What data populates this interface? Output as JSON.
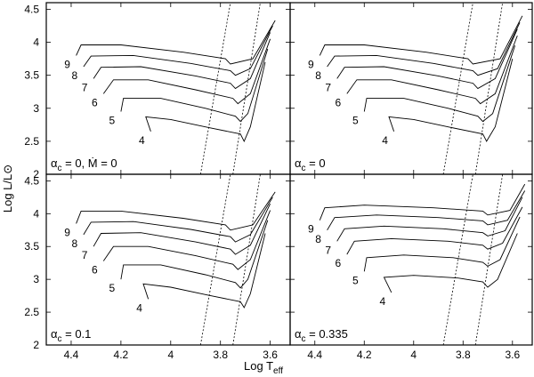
{
  "figure": {
    "ylabel": "Log L/L⊙",
    "xlabel": "Log T",
    "xlabel_sub": "eff",
    "xticks": [
      4.4,
      4.2,
      4,
      3.8,
      3.6
    ],
    "yticks": [
      2,
      2.5,
      3,
      3.5,
      4,
      4.5
    ]
  },
  "chart_data": [
    {
      "type": "line",
      "panel": "top-left",
      "label_main": "α",
      "label_sub": "c",
      "label_rest": " = 0, Ṁ = 0",
      "xlabel": "Log Teff",
      "ylabel": "Log L/L⊙",
      "xlim": [
        4.5,
        3.52
      ],
      "ylim": [
        2,
        4.6
      ],
      "x_reversed": true,
      "grid": false,
      "series": [
        {
          "name": "4",
          "x": [
            4.08,
            4.1,
            4.0,
            3.85,
            3.72,
            3.705,
            3.68,
            3.62
          ],
          "y": [
            2.65,
            2.87,
            2.83,
            2.71,
            2.61,
            2.5,
            2.72,
            3.7
          ]
        },
        {
          "name": "5",
          "x": [
            4.2,
            4.19,
            4.04,
            3.86,
            3.74,
            3.72,
            3.69,
            3.61
          ],
          "y": [
            2.95,
            3.15,
            3.15,
            3.0,
            2.88,
            2.8,
            2.92,
            3.9
          ]
        },
        {
          "name": "6",
          "x": [
            4.27,
            4.23,
            4.09,
            3.9,
            3.75,
            3.73,
            3.68,
            3.6
          ],
          "y": [
            3.22,
            3.43,
            3.43,
            3.28,
            3.15,
            3.07,
            3.22,
            4.05
          ]
        },
        {
          "name": "7",
          "x": [
            4.31,
            4.28,
            4.12,
            3.9,
            3.76,
            3.74,
            3.68,
            3.6
          ],
          "y": [
            3.45,
            3.62,
            3.63,
            3.49,
            3.38,
            3.3,
            3.45,
            4.15
          ]
        },
        {
          "name": "8",
          "x": [
            4.35,
            4.32,
            4.15,
            3.92,
            3.76,
            3.74,
            3.68,
            3.59
          ],
          "y": [
            3.63,
            3.79,
            3.8,
            3.68,
            3.57,
            3.5,
            3.6,
            4.25
          ]
        },
        {
          "name": "9",
          "x": [
            4.38,
            4.36,
            4.2,
            3.95,
            3.78,
            3.76,
            3.67,
            3.58
          ],
          "y": [
            3.8,
            3.96,
            3.96,
            3.85,
            3.75,
            3.67,
            3.75,
            4.33
          ]
        }
      ],
      "isolines": [
        {
          "x": [
            3.88,
            3.76
          ],
          "y": [
            2,
            4.6
          ]
        },
        {
          "x": [
            3.75,
            3.64
          ],
          "y": [
            2,
            4.6
          ]
        }
      ]
    },
    {
      "type": "line",
      "panel": "top-right",
      "label_main": "α",
      "label_sub": "c",
      "label_rest": " = 0",
      "xlabel": "Log Teff",
      "ylabel": "Log L/L⊙",
      "xlim": [
        4.5,
        3.52
      ],
      "ylim": [
        2,
        4.6
      ],
      "x_reversed": true,
      "grid": false,
      "series": [
        {
          "name": "4",
          "x": [
            4.08,
            4.1,
            4.0,
            3.85,
            3.72,
            3.705,
            3.67,
            3.6
          ],
          "y": [
            2.65,
            2.87,
            2.83,
            2.71,
            2.61,
            2.5,
            2.72,
            3.75
          ]
        },
        {
          "name": "5",
          "x": [
            4.2,
            4.19,
            4.04,
            3.86,
            3.74,
            3.72,
            3.68,
            3.59
          ],
          "y": [
            2.95,
            3.15,
            3.15,
            3.0,
            2.88,
            2.8,
            2.92,
            3.95
          ]
        },
        {
          "name": "6",
          "x": [
            4.27,
            4.23,
            4.09,
            3.9,
            3.75,
            3.73,
            3.67,
            3.58
          ],
          "y": [
            3.22,
            3.43,
            3.43,
            3.28,
            3.15,
            3.07,
            3.22,
            4.1
          ]
        },
        {
          "name": "7",
          "x": [
            4.31,
            4.28,
            4.12,
            3.9,
            3.76,
            3.74,
            3.67,
            3.58
          ],
          "y": [
            3.45,
            3.62,
            3.63,
            3.49,
            3.38,
            3.3,
            3.45,
            4.2
          ]
        },
        {
          "name": "8",
          "x": [
            4.35,
            4.32,
            4.15,
            3.92,
            3.76,
            3.74,
            3.66,
            3.57
          ],
          "y": [
            3.63,
            3.79,
            3.8,
            3.68,
            3.57,
            3.5,
            3.6,
            4.3
          ]
        },
        {
          "name": "9",
          "x": [
            4.38,
            4.36,
            4.2,
            3.95,
            3.78,
            3.76,
            3.65,
            3.56
          ],
          "y": [
            3.8,
            3.96,
            3.96,
            3.85,
            3.75,
            3.67,
            3.75,
            4.4
          ]
        }
      ],
      "isolines": [
        {
          "x": [
            3.88,
            3.76
          ],
          "y": [
            2,
            4.6
          ]
        },
        {
          "x": [
            3.75,
            3.64
          ],
          "y": [
            2,
            4.6
          ]
        }
      ]
    },
    {
      "type": "line",
      "panel": "bottom-left",
      "label_main": "α",
      "label_sub": "c",
      "label_rest": " = 0.1",
      "xlabel": "Log Teff",
      "ylabel": "Log L/L⊙",
      "xlim": [
        4.5,
        3.52
      ],
      "ylim": [
        2,
        4.6
      ],
      "x_reversed": true,
      "grid": false,
      "series": [
        {
          "name": "4",
          "x": [
            4.09,
            4.11,
            4.0,
            3.85,
            3.72,
            3.705,
            3.68,
            3.62
          ],
          "y": [
            2.7,
            2.93,
            2.88,
            2.76,
            2.66,
            2.57,
            2.78,
            3.7
          ]
        },
        {
          "name": "5",
          "x": [
            4.2,
            4.19,
            4.04,
            3.86,
            3.74,
            3.72,
            3.69,
            3.61
          ],
          "y": [
            3.0,
            3.22,
            3.22,
            3.07,
            2.95,
            2.87,
            3.0,
            3.9
          ]
        },
        {
          "name": "6",
          "x": [
            4.27,
            4.23,
            4.09,
            3.9,
            3.75,
            3.73,
            3.68,
            3.6
          ],
          "y": [
            3.28,
            3.5,
            3.5,
            3.36,
            3.23,
            3.15,
            3.3,
            4.05
          ]
        },
        {
          "name": "7",
          "x": [
            4.31,
            4.28,
            4.12,
            3.9,
            3.76,
            3.74,
            3.68,
            3.6
          ],
          "y": [
            3.5,
            3.7,
            3.71,
            3.57,
            3.46,
            3.38,
            3.52,
            4.15
          ]
        },
        {
          "name": "8",
          "x": [
            4.35,
            4.32,
            4.15,
            3.92,
            3.76,
            3.74,
            3.68,
            3.59
          ],
          "y": [
            3.68,
            3.87,
            3.88,
            3.76,
            3.65,
            3.57,
            3.68,
            4.25
          ]
        },
        {
          "name": "9",
          "x": [
            4.38,
            4.36,
            4.2,
            3.95,
            3.78,
            3.76,
            3.67,
            3.58
          ],
          "y": [
            3.85,
            4.04,
            4.04,
            3.93,
            3.83,
            3.75,
            3.83,
            4.33
          ]
        }
      ],
      "isolines": [
        {
          "x": [
            3.88,
            3.76
          ],
          "y": [
            2,
            4.6
          ]
        },
        {
          "x": [
            3.75,
            3.64
          ],
          "y": [
            2,
            4.6
          ]
        }
      ]
    },
    {
      "type": "line",
      "panel": "bottom-right",
      "label_main": "α",
      "label_sub": "c",
      "label_rest": " = 0.335",
      "xlabel": "Log Teff",
      "ylabel": "Log L/L⊙",
      "xlim": [
        4.5,
        3.52
      ],
      "ylim": [
        2,
        4.6
      ],
      "x_reversed": true,
      "grid": false,
      "series": [
        {
          "name": "4",
          "x": [
            4.09,
            4.12,
            4.0,
            3.82,
            3.72,
            3.7,
            3.66,
            3.58
          ],
          "y": [
            2.8,
            3.03,
            3.06,
            3.02,
            2.96,
            2.88,
            3.0,
            3.7
          ]
        },
        {
          "name": "5",
          "x": [
            4.2,
            4.19,
            4.04,
            3.84,
            3.72,
            3.7,
            3.65,
            3.57
          ],
          "y": [
            3.12,
            3.33,
            3.37,
            3.33,
            3.26,
            3.2,
            3.3,
            3.95
          ]
        },
        {
          "name": "6",
          "x": [
            4.27,
            4.24,
            4.09,
            3.86,
            3.72,
            3.7,
            3.64,
            3.56
          ],
          "y": [
            3.38,
            3.58,
            3.62,
            3.58,
            3.52,
            3.46,
            3.55,
            4.1
          ]
        },
        {
          "name": "7",
          "x": [
            4.31,
            4.28,
            4.12,
            3.88,
            3.72,
            3.7,
            3.63,
            3.56
          ],
          "y": [
            3.58,
            3.77,
            3.81,
            3.77,
            3.71,
            3.66,
            3.74,
            4.25
          ]
        },
        {
          "name": "8",
          "x": [
            4.35,
            4.32,
            4.15,
            3.9,
            3.72,
            3.7,
            3.62,
            3.55
          ],
          "y": [
            3.75,
            3.94,
            3.98,
            3.94,
            3.89,
            3.83,
            3.9,
            4.35
          ]
        },
        {
          "name": "9",
          "x": [
            4.38,
            4.36,
            4.2,
            3.92,
            3.72,
            3.7,
            3.61,
            3.55
          ],
          "y": [
            3.9,
            4.09,
            4.13,
            4.09,
            4.04,
            3.98,
            4.05,
            4.45
          ]
        }
      ],
      "isolines": [
        {
          "x": [
            3.88,
            3.76
          ],
          "y": [
            2,
            4.6
          ]
        },
        {
          "x": [
            3.75,
            3.64
          ],
          "y": [
            2,
            4.6
          ]
        }
      ]
    }
  ]
}
